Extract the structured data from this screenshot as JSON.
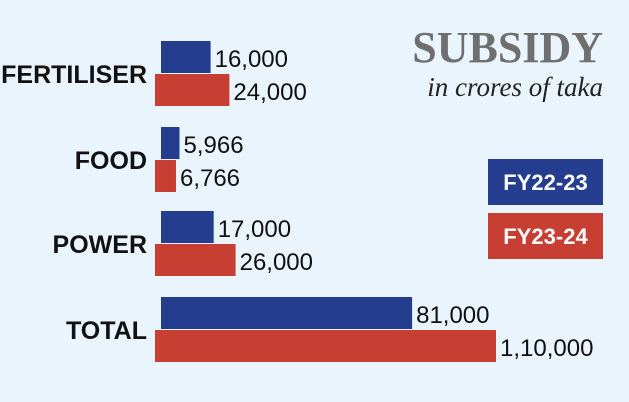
{
  "chart_data": {
    "type": "bar",
    "orientation": "horizontal",
    "title": "SUBSIDY",
    "subtitle": "in crores of taka",
    "categories": [
      "FERTILISER",
      "FOOD",
      "POWER",
      "TOTAL"
    ],
    "series": [
      {
        "name": "FY22-23",
        "color": "#253d8f",
        "values": [
          16000,
          5966,
          17000,
          81000
        ],
        "labels": [
          "16,000",
          "5,966",
          "17,000",
          "81,000"
        ]
      },
      {
        "name": "FY23-24",
        "color": "#c73e33",
        "values": [
          24000,
          6766,
          26000,
          110000
        ],
        "labels": [
          "24,000",
          "6,766",
          "26,000",
          "1,10,000"
        ]
      }
    ],
    "legend_position": "right",
    "grid": false
  }
}
